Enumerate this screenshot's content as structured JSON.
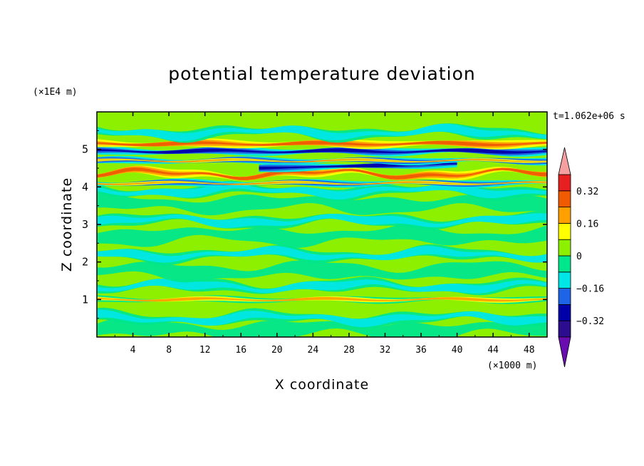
{
  "chart_data": {
    "type": "heatmap",
    "title": "potential temperature deviation",
    "xlabel": "X coordinate",
    "ylabel": "Z coordinate",
    "x_unit": "(×1000 m)",
    "y_unit": "(×1E4 m)",
    "time_label": "t=1.062e+06 s",
    "xlim": [
      0,
      50
    ],
    "ylim": [
      0,
      6
    ],
    "x_ticks": [
      "4",
      "8",
      "12",
      "16",
      "20",
      "24",
      "28",
      "32",
      "36",
      "40",
      "44",
      "48"
    ],
    "x_tick_values": [
      4,
      8,
      12,
      16,
      20,
      24,
      28,
      32,
      36,
      40,
      44,
      48
    ],
    "y_ticks": [
      "1",
      "2",
      "3",
      "4",
      "5"
    ],
    "y_tick_values": [
      1,
      2,
      3,
      4,
      5
    ],
    "colorbar": {
      "levels": [
        -0.4,
        -0.32,
        -0.24,
        -0.16,
        -0.08,
        0,
        0.08,
        0.16,
        0.24,
        0.32,
        0.4
      ],
      "tick_labels": [
        "0.32",
        "0.16",
        "0",
        "−0.16",
        "−0.32"
      ],
      "tick_values": [
        0.32,
        0.16,
        0,
        -0.16,
        -0.32
      ],
      "colors": [
        "#6a0db0",
        "#2b0d8e",
        "#0000a8",
        "#1e64e6",
        "#00e6e6",
        "#00e68c",
        "#8cf000",
        "#ffff00",
        "#ffa000",
        "#f05a00",
        "#e62020",
        "#f4a0a0"
      ]
    },
    "bands": [
      {
        "z": 0.2,
        "t": "zero",
        "shape": "wave",
        "start": 0,
        "end": 50
      },
      {
        "z": 0.5,
        "t": "neg",
        "shape": "wave",
        "start": 0,
        "end": 50
      },
      {
        "z": 1.0,
        "t": "mix",
        "shape": "flat",
        "start": 0,
        "end": 50
      },
      {
        "z": 1.35,
        "t": "neg",
        "shape": "wave",
        "start": 0,
        "end": 50
      },
      {
        "z": 1.75,
        "t": "zero",
        "shape": "wave",
        "start": 0,
        "end": 50
      },
      {
        "z": 2.2,
        "t": "neg",
        "shape": "wave",
        "start": 0,
        "end": 50
      },
      {
        "z": 2.7,
        "t": "zero",
        "shape": "wave",
        "start": 0,
        "end": 50
      },
      {
        "z": 3.1,
        "t": "neg",
        "shape": "wave",
        "start": 0,
        "end": 50
      },
      {
        "z": 3.55,
        "t": "zero",
        "shape": "wave",
        "start": 0,
        "end": 50
      },
      {
        "z": 3.9,
        "t": "neg",
        "shape": "wave",
        "start": 0,
        "end": 50
      },
      {
        "z": 4.1,
        "t": "strong",
        "shape": "flat",
        "start": 0,
        "end": 50
      },
      {
        "z": 4.35,
        "t": "warm",
        "shape": "wave",
        "start": 0,
        "end": 50
      },
      {
        "z": 4.62,
        "t": "cold",
        "shape": "tilt",
        "start": 18,
        "end": 40
      },
      {
        "z": 4.7,
        "t": "strong",
        "shape": "flat",
        "start": 0,
        "end": 50
      },
      {
        "z": 4.95,
        "t": "cold",
        "shape": "flat",
        "start": 0,
        "end": 50
      },
      {
        "z": 5.15,
        "t": "warm",
        "shape": "flat",
        "start": 0,
        "end": 50
      },
      {
        "z": 5.45,
        "t": "neg",
        "shape": "wave",
        "start": 0,
        "end": 50
      }
    ]
  }
}
